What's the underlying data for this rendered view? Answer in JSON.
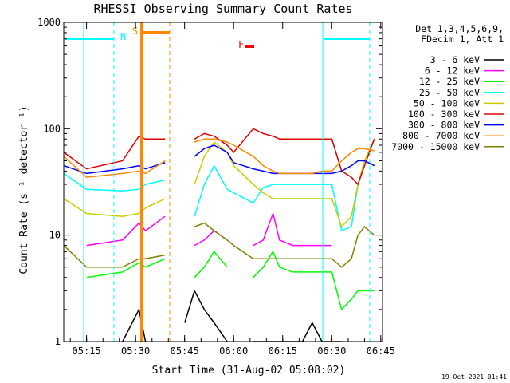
{
  "chart_data": {
    "type": "line",
    "title": "RHESSI Observing Summary Count Rates",
    "xlabel": "Start Time (31-Aug-02 05:08:02)",
    "ylabel": "Count Rate (s⁻¹ detector⁻¹)",
    "yscale": "log",
    "ylim": [
      1,
      1000
    ],
    "y_ticks": [
      {
        "value": 1,
        "label": "1"
      },
      {
        "value": 10,
        "label": "10"
      },
      {
        "value": 100,
        "label": "100"
      },
      {
        "value": 1000,
        "label": "1000"
      }
    ],
    "x_ticks": [
      "05:15",
      "05:30",
      "05:45",
      "06:00",
      "06:15",
      "06:30",
      "06:45"
    ],
    "legend_header": [
      "Det 1,3,4,5,6,9,",
      "FDecim 1, Att 1"
    ],
    "legend_position": "right",
    "timestamp": "19-Oct-2021 01:41",
    "x_values_min": [
      0,
      7,
      18,
      23,
      25,
      31,
      34,
      37,
      40,
      43,
      46,
      50,
      52,
      58,
      61,
      64,
      66,
      70,
      73,
      76,
      79,
      82,
      85,
      88,
      90,
      92,
      95
    ],
    "series": [
      {
        "name": "3 - 6 keV",
        "color": "#000000",
        "values": [
          null,
          null,
          1.0,
          2.0,
          1.0,
          null,
          null,
          1.5,
          3.0,
          2.0,
          1.5,
          1.0,
          null,
          1.0,
          1.0,
          1.0,
          1.0,
          1.0,
          1.0,
          1.5,
          1.0,
          1.0,
          1.0,
          null,
          null,
          null,
          null
        ]
      },
      {
        "name": "6 - 12 keV",
        "color": "#ff00ff",
        "values": [
          null,
          8.0,
          9.0,
          13.0,
          11.0,
          15.0,
          null,
          null,
          8.0,
          9.0,
          11.0,
          9.0,
          null,
          8.0,
          9.0,
          16.0,
          9.0,
          8.0,
          8.0,
          8.0,
          8.0,
          8.0,
          null,
          null,
          null,
          null,
          null
        ]
      },
      {
        "name": "12 - 25 keV",
        "color": "#00ff00",
        "values": [
          null,
          4.0,
          4.5,
          5.5,
          5.0,
          6.0,
          null,
          null,
          4.0,
          5.0,
          7.0,
          5.0,
          null,
          4.0,
          5.0,
          7.0,
          5.0,
          4.5,
          4.5,
          4.5,
          4.5,
          4.5,
          2.0,
          2.5,
          3.0,
          3.0,
          3.0
        ]
      },
      {
        "name": "25 - 50 keV",
        "color": "#00ffff",
        "values": [
          38,
          27,
          26,
          27,
          30,
          33,
          null,
          null,
          15,
          30,
          45,
          27,
          25,
          20,
          28,
          30,
          30,
          30,
          30,
          30,
          30,
          30,
          11,
          12,
          30,
          50,
          45
        ]
      },
      {
        "name": "50 - 100 keV",
        "color": "#cccc00",
        "values": [
          22,
          16,
          15,
          16,
          18,
          22,
          null,
          null,
          30,
          55,
          75,
          60,
          45,
          30,
          25,
          22,
          22,
          22,
          22,
          22,
          22,
          22,
          12,
          15,
          30,
          50,
          80
        ]
      },
      {
        "name": "100 - 300 keV",
        "color": "#dd0000",
        "values": [
          60,
          42,
          50,
          85,
          80,
          80,
          null,
          null,
          80,
          90,
          85,
          70,
          60,
          100,
          90,
          85,
          80,
          80,
          80,
          80,
          80,
          80,
          40,
          35,
          30,
          45,
          80
        ]
      },
      {
        "name": "300 - 800 keV",
        "color": "#0000ff",
        "values": [
          45,
          38,
          42,
          45,
          42,
          48,
          null,
          null,
          55,
          65,
          70,
          60,
          48,
          42,
          40,
          38,
          38,
          38,
          38,
          38,
          38,
          38,
          40,
          45,
          50,
          50,
          45
        ]
      },
      {
        "name": "800 - 7000 keV",
        "color": "#ff8800",
        "values": [
          55,
          35,
          38,
          40,
          38,
          50,
          null,
          null,
          75,
          80,
          80,
          75,
          70,
          55,
          45,
          40,
          38,
          38,
          38,
          38,
          40,
          40,
          50,
          60,
          65,
          65,
          62
        ]
      },
      {
        "name": "7000 - 15000 keV",
        "color": "#808000",
        "values": [
          8.0,
          5.0,
          5.0,
          6.0,
          6.0,
          6.5,
          null,
          null,
          12.0,
          13.0,
          11.0,
          9.0,
          8.0,
          6.0,
          6.0,
          6.0,
          6.0,
          6.0,
          6.0,
          6.0,
          6.0,
          6.0,
          5.0,
          6.0,
          10.0,
          12.0,
          10.0
        ]
      }
    ],
    "annotations": [
      {
        "label": "N",
        "color": "#00ffff"
      },
      {
        "label": "S",
        "color": "#ff8800"
      },
      {
        "label": "F",
        "color": "#ff0000"
      }
    ]
  }
}
